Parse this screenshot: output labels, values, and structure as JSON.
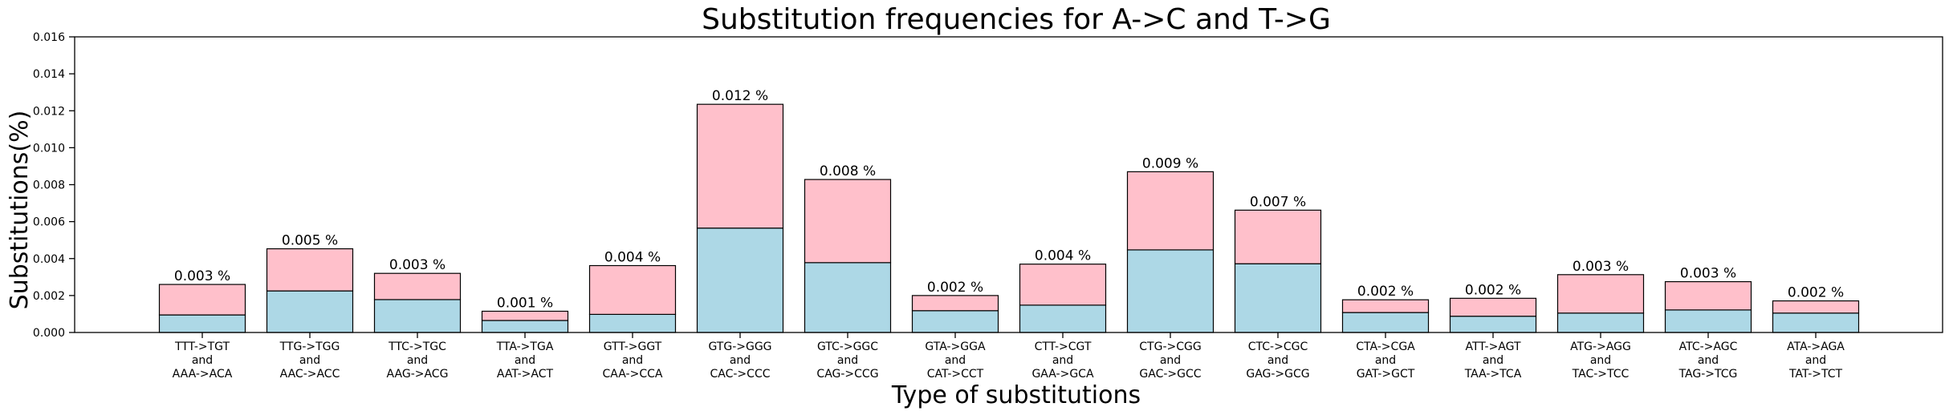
{
  "chart_data": {
    "type": "bar",
    "stacked": true,
    "title": "Substitution frequencies for A->C and T->G",
    "xlabel": "Type of substitutions",
    "ylabel": "Substitutions(%)",
    "ylim": [
      0,
      0.016
    ],
    "yticks": [
      "0.000",
      "0.002",
      "0.004",
      "0.006",
      "0.008",
      "0.010",
      "0.012",
      "0.014",
      "0.016"
    ],
    "grid": false,
    "legend": "none",
    "categories": [
      [
        "TTT->TGT",
        "and",
        "AAA->ACA"
      ],
      [
        "TTG->TGG",
        "and",
        "AAC->ACC"
      ],
      [
        "TTC->TGC",
        "and",
        "AAG->ACG"
      ],
      [
        "TTA->TGA",
        "and",
        "AAT->ACT"
      ],
      [
        "GTT->GGT",
        "and",
        "CAA->CCA"
      ],
      [
        "GTG->GGG",
        "and",
        "CAC->CCC"
      ],
      [
        "GTC->GGC",
        "and",
        "CAG->CCG"
      ],
      [
        "GTA->GGA",
        "and",
        "CAT->CCT"
      ],
      [
        "CTT->CGT",
        "and",
        "GAA->GCA"
      ],
      [
        "CTG->CGG",
        "and",
        "GAC->GCC"
      ],
      [
        "CTC->CGC",
        "and",
        "GAG->GCG"
      ],
      [
        "CTA->CGA",
        "and",
        "GAT->GCT"
      ],
      [
        "ATT->AGT",
        "and",
        "TAA->TCA"
      ],
      [
        "ATG->AGG",
        "and",
        "TAC->TCC"
      ],
      [
        "ATC->AGC",
        "and",
        "TAG->TCG"
      ],
      [
        "ATA->AGA",
        "and",
        "TAT->TCT"
      ]
    ],
    "series": [
      {
        "color": "#add8e6",
        "values": [
          0.00095,
          0.00225,
          0.00178,
          0.00065,
          0.00098,
          0.00565,
          0.00378,
          0.00118,
          0.00148,
          0.00447,
          0.00372,
          0.00108,
          0.00088,
          0.00105,
          0.00122,
          0.00105
        ]
      },
      {
        "color": "#ffc0cb",
        "values": [
          0.00165,
          0.00228,
          0.00142,
          0.0005,
          0.00264,
          0.0067,
          0.0045,
          0.00082,
          0.00222,
          0.00423,
          0.0029,
          0.00069,
          0.00097,
          0.00208,
          0.00153,
          0.00066
        ]
      }
    ],
    "data_labels": [
      "0.003 %",
      "0.005 %",
      "0.003 %",
      "0.001 %",
      "0.004 %",
      "0.012 %",
      "0.008 %",
      "0.002 %",
      "0.004 %",
      "0.009 %",
      "0.007 %",
      "0.002 %",
      "0.002 %",
      "0.003 %",
      "0.003 %",
      "0.002 %"
    ]
  }
}
